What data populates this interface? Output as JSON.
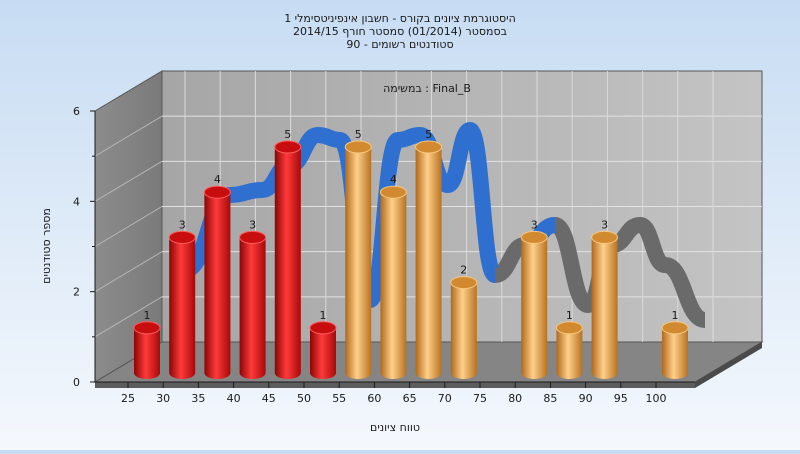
{
  "chart_data": {
    "type": "bar",
    "title_lines": [
      "היסטוגרמת ציונים בקורס - חשבון אינפיניטסימלי 1",
      "בסמסטר  (01/2014)  סמסטר חורף 2014/15",
      "סטודנטים רשומים - 90"
    ],
    "inner_label": "במשימה : Final_B",
    "xlabel": "טווח ציונים",
    "ylabel": "מספר סטודנטים",
    "categories": [
      "25",
      "30",
      "35",
      "40",
      "45",
      "50",
      "55",
      "60",
      "65",
      "70",
      "75",
      "80",
      "85",
      "90",
      "95",
      "100"
    ],
    "values": [
      1,
      3,
      4,
      3,
      5,
      1,
      5,
      4,
      5,
      2,
      0,
      3,
      1,
      3,
      0,
      1
    ],
    "value_labels": [
      "1",
      "3",
      "4",
      "3",
      "5",
      "1",
      "5",
      "4",
      "5",
      "2",
      "",
      "3",
      "1",
      "3",
      "",
      "1"
    ],
    "bar_colors": [
      "red",
      "red",
      "red",
      "red",
      "red",
      "red",
      "orange",
      "orange",
      "orange",
      "orange",
      "orange",
      "orange",
      "orange",
      "orange",
      "orange",
      "orange"
    ],
    "yticks": [
      "0",
      "2",
      "4",
      "6"
    ],
    "ylim": [
      0,
      6
    ],
    "grid": true,
    "colors": {
      "red": "#e01818",
      "orange": "#e8a040",
      "ribbon_blue": "#2f6fd0",
      "ribbon_gray": "#6a6a6a"
    }
  }
}
